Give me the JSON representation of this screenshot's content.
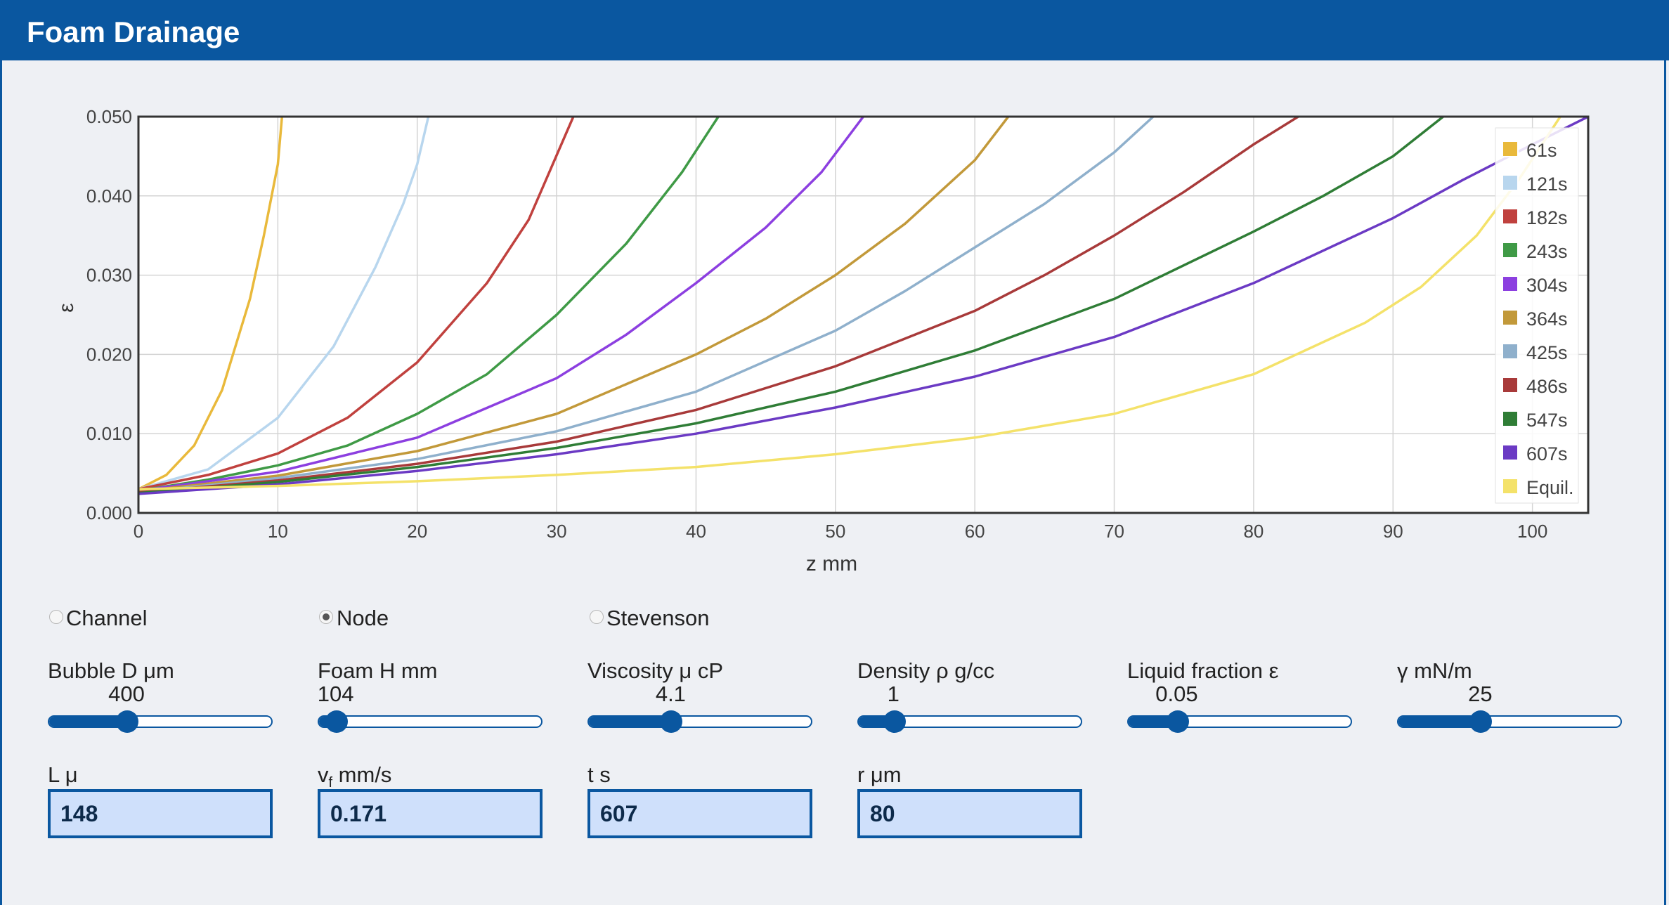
{
  "app": {
    "title": "Foam Drainage"
  },
  "chart_data": {
    "type": "line",
    "xlabel": "z mm",
    "ylabel": "ε",
    "xlim": [
      0,
      104
    ],
    "ylim": [
      0,
      0.05
    ],
    "xticks": [
      "0",
      "10",
      "20",
      "30",
      "40",
      "50",
      "60",
      "70",
      "80",
      "90",
      "100"
    ],
    "yticks": [
      "0.000",
      "0.010",
      "0.020",
      "0.030",
      "0.040",
      "0.050"
    ],
    "grid": true,
    "legend": "top-right",
    "series": [
      {
        "name": "61s",
        "color": "#e9b93b",
        "x": [
          0,
          2,
          4,
          6,
          8,
          9,
          10,
          10.3
        ],
        "y": [
          0.003,
          0.0048,
          0.0085,
          0.0155,
          0.027,
          0.035,
          0.044,
          0.05
        ]
      },
      {
        "name": "121s",
        "color": "#b8d6ee",
        "x": [
          0,
          5,
          10,
          14,
          17,
          19,
          20,
          20.8
        ],
        "y": [
          0.003,
          0.0055,
          0.012,
          0.021,
          0.031,
          0.039,
          0.044,
          0.05
        ]
      },
      {
        "name": "182s",
        "color": "#c0413e",
        "x": [
          0,
          5,
          10,
          15,
          20,
          25,
          28,
          31.2
        ],
        "y": [
          0.003,
          0.0048,
          0.0075,
          0.012,
          0.019,
          0.029,
          0.037,
          0.05
        ]
      },
      {
        "name": "243s",
        "color": "#3f9a46",
        "x": [
          0,
          5,
          10,
          15,
          20,
          25,
          30,
          35,
          39,
          41.6
        ],
        "y": [
          0.0028,
          0.0042,
          0.006,
          0.0085,
          0.0125,
          0.0175,
          0.025,
          0.034,
          0.043,
          0.05
        ]
      },
      {
        "name": "304s",
        "color": "#8c3fe0",
        "x": [
          0,
          10,
          20,
          30,
          35,
          40,
          45,
          49,
          52
        ],
        "y": [
          0.0028,
          0.0052,
          0.0095,
          0.017,
          0.0225,
          0.029,
          0.036,
          0.043,
          0.05
        ]
      },
      {
        "name": "364s",
        "color": "#c2993a",
        "x": [
          0,
          10,
          20,
          30,
          40,
          45,
          50,
          55,
          60,
          62.4
        ],
        "y": [
          0.0027,
          0.0047,
          0.0078,
          0.0125,
          0.02,
          0.0245,
          0.03,
          0.0365,
          0.0445,
          0.05
        ]
      },
      {
        "name": "425s",
        "color": "#8fb0cc",
        "x": [
          0,
          10,
          20,
          30,
          40,
          50,
          55,
          60,
          65,
          70,
          72.8
        ],
        "y": [
          0.0026,
          0.0044,
          0.0068,
          0.0103,
          0.0153,
          0.023,
          0.028,
          0.0335,
          0.039,
          0.0455,
          0.05
        ]
      },
      {
        "name": "486s",
        "color": "#a83a3a",
        "x": [
          0,
          10,
          20,
          30,
          40,
          50,
          60,
          65,
          70,
          75,
          80,
          83.2
        ],
        "y": [
          0.0026,
          0.0041,
          0.0062,
          0.009,
          0.013,
          0.0185,
          0.0255,
          0.03,
          0.035,
          0.0405,
          0.0465,
          0.05
        ]
      },
      {
        "name": "547s",
        "color": "#2f7d36",
        "x": [
          0,
          10,
          20,
          30,
          40,
          50,
          60,
          70,
          80,
          85,
          90,
          93.6
        ],
        "y": [
          0.0025,
          0.0039,
          0.0058,
          0.0082,
          0.0113,
          0.0153,
          0.0205,
          0.027,
          0.0355,
          0.04,
          0.045,
          0.05
        ]
      },
      {
        "name": "607s",
        "color": "#6b3ac4",
        "x": [
          0,
          10,
          20,
          30,
          40,
          50,
          60,
          70,
          80,
          90,
          95,
          100,
          104
        ],
        "y": [
          0.0024,
          0.0036,
          0.0053,
          0.0074,
          0.01,
          0.0133,
          0.0172,
          0.0222,
          0.029,
          0.0372,
          0.042,
          0.0465,
          0.05
        ]
      },
      {
        "name": "Equil.",
        "color": "#f4e26a",
        "x": [
          0,
          10,
          20,
          30,
          40,
          50,
          60,
          70,
          80,
          88,
          92,
          96,
          99,
          102
        ],
        "y": [
          0.003,
          0.0034,
          0.004,
          0.0048,
          0.0058,
          0.0074,
          0.0095,
          0.0125,
          0.0175,
          0.024,
          0.0285,
          0.035,
          0.042,
          0.05
        ]
      }
    ]
  },
  "modes": [
    {
      "label": "Channel",
      "checked": false
    },
    {
      "label": "Node",
      "checked": true
    },
    {
      "label": "Stevenson",
      "checked": false
    }
  ],
  "sliders": [
    {
      "label": "Bubble D μm",
      "value": "400",
      "fraction": 0.35
    },
    {
      "label": "Foam H mm",
      "value": "104",
      "fraction": 0.08
    },
    {
      "label": "Viscosity μ cP",
      "value": "4.1",
      "fraction": 0.37
    },
    {
      "label": "Density ρ g/cc",
      "value": "1",
      "fraction": 0.16
    },
    {
      "label": "Liquid fraction ε",
      "value": "0.05",
      "fraction": 0.22
    },
    {
      "label": "γ mN/m",
      "value": "25",
      "fraction": 0.37
    }
  ],
  "outputs": [
    {
      "label": "L μ",
      "value": "148"
    },
    {
      "label": "vf mm/s",
      "value": "0.171"
    },
    {
      "label": "t s",
      "value": "607"
    },
    {
      "label": "r μm",
      "value": "80"
    }
  ]
}
